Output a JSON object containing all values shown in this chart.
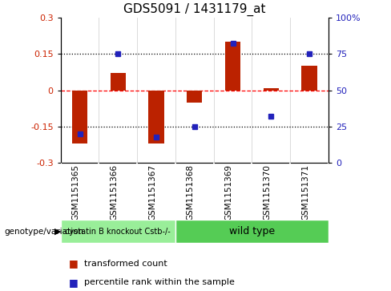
{
  "title": "GDS5091 / 1431179_at",
  "categories": [
    "GSM1151365",
    "GSM1151366",
    "GSM1151367",
    "GSM1151368",
    "GSM1151369",
    "GSM1151370",
    "GSM1151371"
  ],
  "red_values": [
    -0.22,
    0.07,
    -0.22,
    -0.05,
    0.2,
    0.01,
    0.1
  ],
  "blue_values": [
    20,
    75,
    18,
    25,
    82,
    32,
    75
  ],
  "ylim_left": [
    -0.3,
    0.3
  ],
  "ylim_right": [
    0,
    100
  ],
  "yticks_left": [
    -0.3,
    -0.15,
    0,
    0.15,
    0.3
  ],
  "yticks_right": [
    0,
    25,
    50,
    75,
    100
  ],
  "ytick_labels_left": [
    "-0.3",
    "-0.15",
    "0",
    "0.15",
    "0.3"
  ],
  "ytick_labels_right": [
    "0",
    "25",
    "50",
    "75",
    "100%"
  ],
  "hlines": [
    -0.15,
    0.0,
    0.15
  ],
  "hline_styles": [
    "dotted",
    "dashed",
    "dotted"
  ],
  "hline_colors": [
    "black",
    "red",
    "black"
  ],
  "red_color": "#bb2200",
  "blue_color": "#2222bb",
  "bar_width": 0.4,
  "group1_label": "cystatin B knockout Cstb-/-",
  "group2_label": "wild type",
  "group1_indices": [
    0,
    1,
    2
  ],
  "group2_indices": [
    3,
    4,
    5,
    6
  ],
  "group1_color": "#99ee99",
  "group2_color": "#55cc55",
  "genotype_label": "genotype/variation",
  "legend_red": "transformed count",
  "legend_blue": "percentile rank within the sample",
  "bg_color": "#ffffff",
  "plot_bg": "#ffffff",
  "label_bg": "#cccccc",
  "axis_color_left": "#cc2200",
  "axis_color_right": "#2222bb",
  "title_fontsize": 11,
  "tick_fontsize": 8,
  "xlabel_fontsize": 7.5,
  "legend_fontsize": 8,
  "group_fontsize1": 7,
  "group_fontsize2": 9
}
